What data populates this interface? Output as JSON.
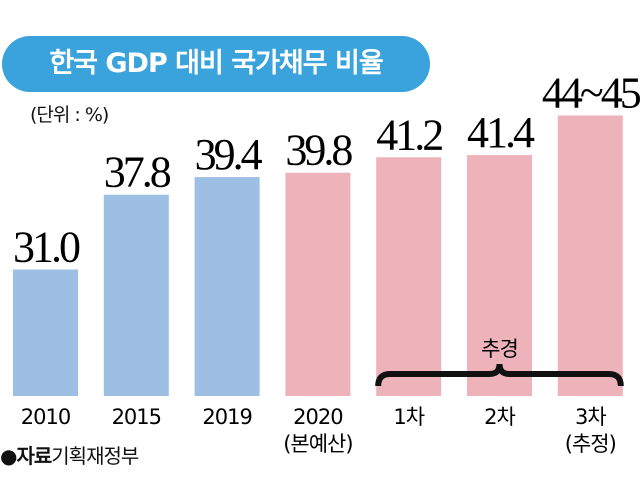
{
  "chart_data": {
    "type": "bar",
    "title": "한국 GDP 대비 국가채무 비율",
    "unit_label": "(단위 : %)",
    "categories": [
      [
        "2010"
      ],
      [
        "2015"
      ],
      [
        "2019"
      ],
      [
        "2020",
        "(본예산)"
      ],
      [
        "1차"
      ],
      [
        "2차"
      ],
      [
        "3차",
        "(추정)"
      ]
    ],
    "values": [
      31.0,
      37.8,
      39.4,
      39.8,
      41.2,
      41.4,
      [
        44,
        45
      ]
    ],
    "value_labels": [
      "31.0",
      "37.8",
      "39.4",
      "39.8",
      "41.2",
      "41.4",
      "44~45"
    ],
    "bar_colors": [
      "#9dbfe3",
      "#9dbfe3",
      "#9dbfe3",
      "#eeb3ba",
      "#eeb3ba",
      "#eeb3ba",
      "#eeb3ba"
    ],
    "bracket_label": "추경",
    "grid": false,
    "source": {
      "bullet": "●",
      "label": "자료",
      "text": "기획재정부"
    }
  }
}
